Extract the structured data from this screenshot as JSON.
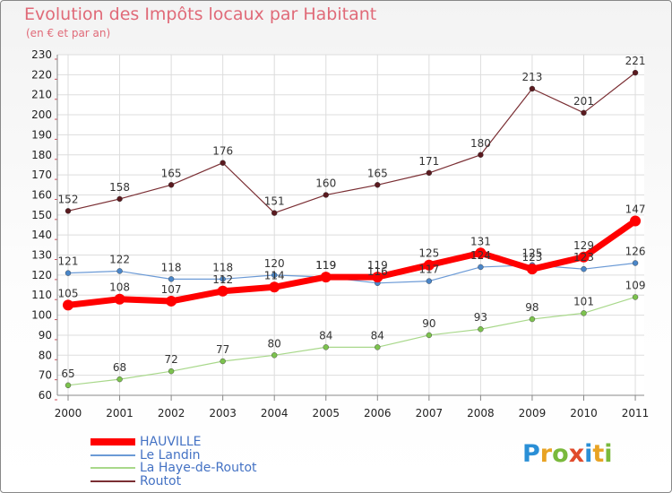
{
  "title": "Evolution des Impôts locaux par Habitant",
  "subtitle": "(en € et par an)",
  "logo": {
    "letters": [
      "P",
      "r",
      "o",
      "x",
      "i",
      "t",
      "i"
    ],
    "colors": [
      "#2a8fd6",
      "#e8a324",
      "#7ab93c",
      "#e04b2c",
      "#2a8fd6",
      "#e8a324",
      "#7ab93c"
    ]
  },
  "chart_data": {
    "type": "line",
    "title": "Evolution des Impôts locaux par Habitant",
    "subtitle": "(en € et par an)",
    "xlabel": "",
    "ylabel": "",
    "categories": [
      "2000",
      "2001",
      "2002",
      "2003",
      "2004",
      "2005",
      "2006",
      "2007",
      "2008",
      "2009",
      "2010",
      "2011"
    ],
    "ylim": [
      60,
      230
    ],
    "yticks": [
      60,
      70,
      80,
      90,
      100,
      110,
      120,
      130,
      140,
      150,
      160,
      170,
      180,
      190,
      200,
      210,
      220,
      230
    ],
    "grid": true,
    "legend_position": "bottom-left",
    "series": [
      {
        "name": "Routot",
        "color": "#7a2e33",
        "marker": "#5a1a1f",
        "width": 1.2,
        "values": [
          152,
          158,
          165,
          176,
          151,
          160,
          165,
          171,
          180,
          213,
          201,
          221
        ]
      },
      {
        "name": "Le Landin",
        "color": "#6b9ad6",
        "marker": "#4a86c8",
        "width": 1.2,
        "values": [
          121,
          122,
          118,
          118,
          120,
          119,
          116,
          117,
          124,
          125,
          123,
          126
        ]
      },
      {
        "name": "La Haye-de-Routot",
        "color": "#a8d88a",
        "marker": "#7cc24e",
        "width": 1.2,
        "values": [
          65,
          68,
          72,
          77,
          80,
          84,
          84,
          90,
          93,
          98,
          101,
          109
        ]
      },
      {
        "name": "HAUVILLE",
        "color": "#ff0000",
        "marker": "#ff0000",
        "width": 7,
        "values": [
          105,
          108,
          107,
          112,
          114,
          119,
          119,
          125,
          131,
          123,
          129,
          147
        ]
      }
    ]
  },
  "legend_items": [
    {
      "name": "HAUVILLE",
      "color": "#ff0000",
      "thickness": 8
    },
    {
      "name": "Le Landin",
      "color": "#6b9ad6",
      "thickness": 2
    },
    {
      "name": "La Haye-de-Routot",
      "color": "#a8d88a",
      "thickness": 2
    },
    {
      "name": "Routot",
      "color": "#7a2e33",
      "thickness": 2
    }
  ]
}
